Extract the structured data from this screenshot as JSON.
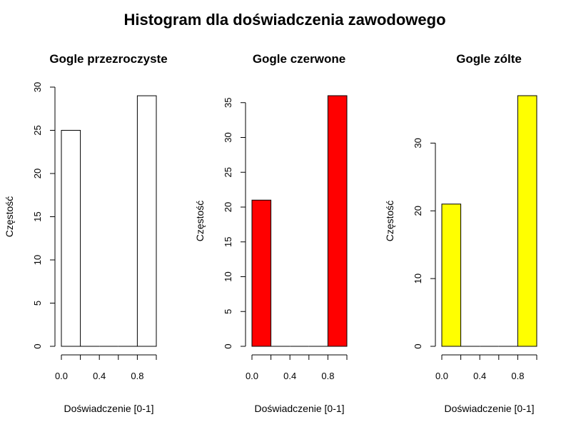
{
  "figure": {
    "title": "Histogram dla doświadczenia zawodowego"
  },
  "chart_data": [
    {
      "type": "bar",
      "title": "Gogle przezroczyste",
      "xlabel": "Doświadczenie [0-1]",
      "ylabel": "Częstość",
      "bins": [
        [
          0.0,
          0.2
        ],
        [
          0.2,
          0.4
        ],
        [
          0.4,
          0.6
        ],
        [
          0.6,
          0.8
        ],
        [
          0.8,
          1.0
        ]
      ],
      "values": [
        25,
        0,
        0,
        0,
        29
      ],
      "xlim": [
        0,
        1
      ],
      "ylim": [
        0,
        30
      ],
      "xticks": [
        0.0,
        0.2,
        0.4,
        0.6,
        0.8,
        1.0
      ],
      "xtick_labels": [
        "0.0",
        "",
        "0.4",
        "",
        "0.8",
        ""
      ],
      "yticks": [
        0,
        5,
        10,
        15,
        20,
        25,
        30
      ],
      "ytick_labels": [
        "0",
        "5",
        "10",
        "15",
        "20",
        "25",
        "30"
      ],
      "color": "#FFFFFF",
      "grid": false
    },
    {
      "type": "bar",
      "title": "Gogle czerwone",
      "xlabel": "Doświadczenie [0-1]",
      "ylabel": "Częstość",
      "bins": [
        [
          0.0,
          0.2
        ],
        [
          0.2,
          0.4
        ],
        [
          0.4,
          0.6
        ],
        [
          0.6,
          0.8
        ],
        [
          0.8,
          1.0
        ]
      ],
      "values": [
        21,
        0,
        0,
        0,
        36
      ],
      "xlim": [
        0,
        1
      ],
      "ylim": [
        0,
        36
      ],
      "xticks": [
        0.0,
        0.2,
        0.4,
        0.6,
        0.8,
        1.0
      ],
      "xtick_labels": [
        "0.0",
        "",
        "0.4",
        "",
        "0.8",
        ""
      ],
      "yticks": [
        0,
        5,
        10,
        15,
        20,
        25,
        30,
        35
      ],
      "ytick_labels": [
        "0",
        "5",
        "10",
        "15",
        "20",
        "25",
        "30",
        "35"
      ],
      "color": "#FF0000",
      "grid": false
    },
    {
      "type": "bar",
      "title": "Gogle zólte",
      "xlabel": "Doświadczenie [0-1]",
      "ylabel": "Częstość",
      "bins": [
        [
          0.0,
          0.2
        ],
        [
          0.2,
          0.4
        ],
        [
          0.4,
          0.6
        ],
        [
          0.6,
          0.8
        ],
        [
          0.8,
          1.0
        ]
      ],
      "values": [
        21,
        0,
        0,
        0,
        37
      ],
      "xlim": [
        0,
        1
      ],
      "ylim": [
        0,
        37
      ],
      "xticks": [
        0.0,
        0.2,
        0.4,
        0.6,
        0.8,
        1.0
      ],
      "xtick_labels": [
        "0.0",
        "",
        "0.4",
        "",
        "0.8",
        ""
      ],
      "yticks": [
        0,
        10,
        20,
        30
      ],
      "ytick_labels": [
        "0",
        "10",
        "20",
        "30"
      ],
      "color": "#FFFF00",
      "grid": false
    }
  ]
}
